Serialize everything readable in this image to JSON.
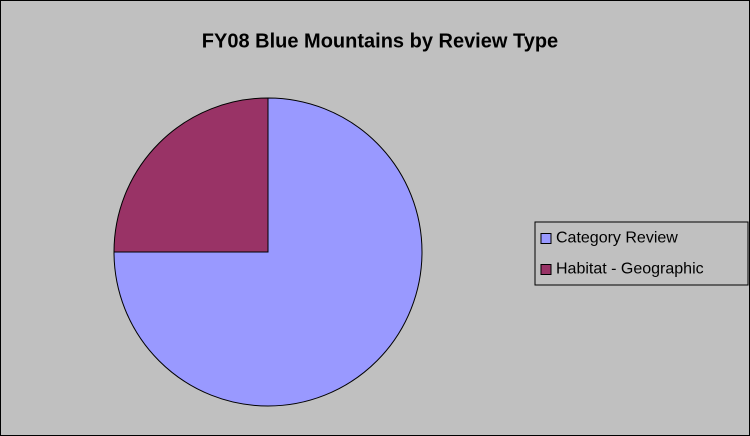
{
  "chart_data": {
    "type": "pie",
    "title": "FY08 Blue Mountains by Review Type",
    "categories": [
      "Category Review",
      "Habitat - Geographic"
    ],
    "values": [
      75,
      25
    ],
    "colors": [
      "#9999ff",
      "#993366"
    ],
    "legend": "right"
  }
}
